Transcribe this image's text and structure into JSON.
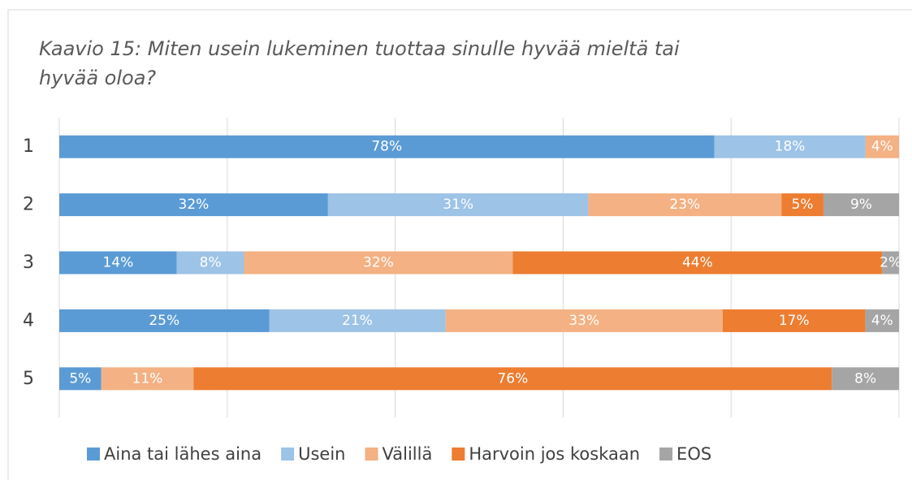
{
  "chart_data": {
    "type": "stacked-bar-horizontal",
    "title": "Kaavio 15: Miten usein lukeminen tuottaa sinulle hyvää mieltä tai hyvää oloa?",
    "categories": [
      "1",
      "2",
      "3",
      "4",
      "5"
    ],
    "xlim": [
      0,
      100
    ],
    "xticks": [
      0,
      20,
      40,
      60,
      80,
      100
    ],
    "grid": true,
    "legend": "bottom",
    "series": [
      {
        "name": "Aina tai lähes aina",
        "color": "#5b9bd5",
        "values": [
          78,
          32,
          14,
          25,
          5
        ],
        "value_labels": [
          "78%",
          "32%",
          "14%",
          "25%",
          "5%"
        ]
      },
      {
        "name": "Usein",
        "color": "#9dc3e6",
        "values": [
          18,
          31,
          8,
          21,
          null
        ],
        "value_labels": [
          "18%",
          "31%",
          "8%",
          "21%",
          null
        ]
      },
      {
        "name": "Välillä",
        "color": "#f4b183",
        "values": [
          4,
          23,
          32,
          33,
          11
        ],
        "value_labels": [
          "4%",
          "23%",
          "32%",
          "33%",
          "11%"
        ]
      },
      {
        "name": "Harvoin jos koskaan",
        "color": "#ed7d31",
        "values": [
          null,
          5,
          44,
          17,
          76
        ],
        "value_labels": [
          null,
          "5%",
          "44%",
          "17%",
          "76%"
        ]
      },
      {
        "name": "EOS",
        "color": "#a5a5a5",
        "values": [
          null,
          9,
          2,
          4,
          8
        ],
        "value_labels": [
          null,
          "9%",
          "2%",
          "4%",
          "8%"
        ]
      }
    ]
  }
}
